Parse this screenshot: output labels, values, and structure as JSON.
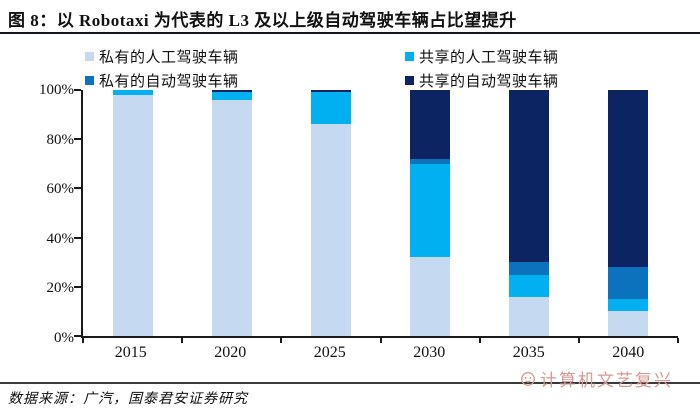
{
  "title": "图 8：以 Robotaxi 为代表的 L3 及以上级自动驾驶车辆占比望提升",
  "source": "数据来源：广汽，国泰君安证券研究",
  "watermark": "计算机文艺复兴",
  "colors": {
    "private_manual": "#c5d9f1",
    "shared_manual": "#00b0f0",
    "private_auto": "#0d72bd",
    "shared_auto": "#0c2461",
    "axis": "#1a1a1a",
    "watermark": "#d59a92"
  },
  "chart_data": {
    "type": "bar",
    "stacked": true,
    "unit": "%",
    "categories": [
      "2015",
      "2020",
      "2025",
      "2030",
      "2035",
      "2040"
    ],
    "series": [
      {
        "name": "私有的人工驾驶车辆",
        "color_key": "private_manual",
        "values": [
          98,
          96,
          86,
          32,
          16,
          10
        ]
      },
      {
        "name": "共享的人工驾驶车辆",
        "color_key": "shared_manual",
        "values": [
          2,
          3,
          13,
          38,
          9,
          5
        ]
      },
      {
        "name": "私有的自动驾驶车辆",
        "color_key": "private_auto",
        "values": [
          0,
          0,
          0,
          2,
          5,
          13
        ]
      },
      {
        "name": "共享的自动驾驶车辆",
        "color_key": "shared_auto",
        "values": [
          0,
          1,
          1,
          28,
          70,
          72
        ]
      }
    ],
    "y_ticks": [
      "0%",
      "20%",
      "40%",
      "60%",
      "80%",
      "100%"
    ],
    "ylim": [
      0,
      100
    ],
    "grid": false,
    "legend_position": "top"
  }
}
